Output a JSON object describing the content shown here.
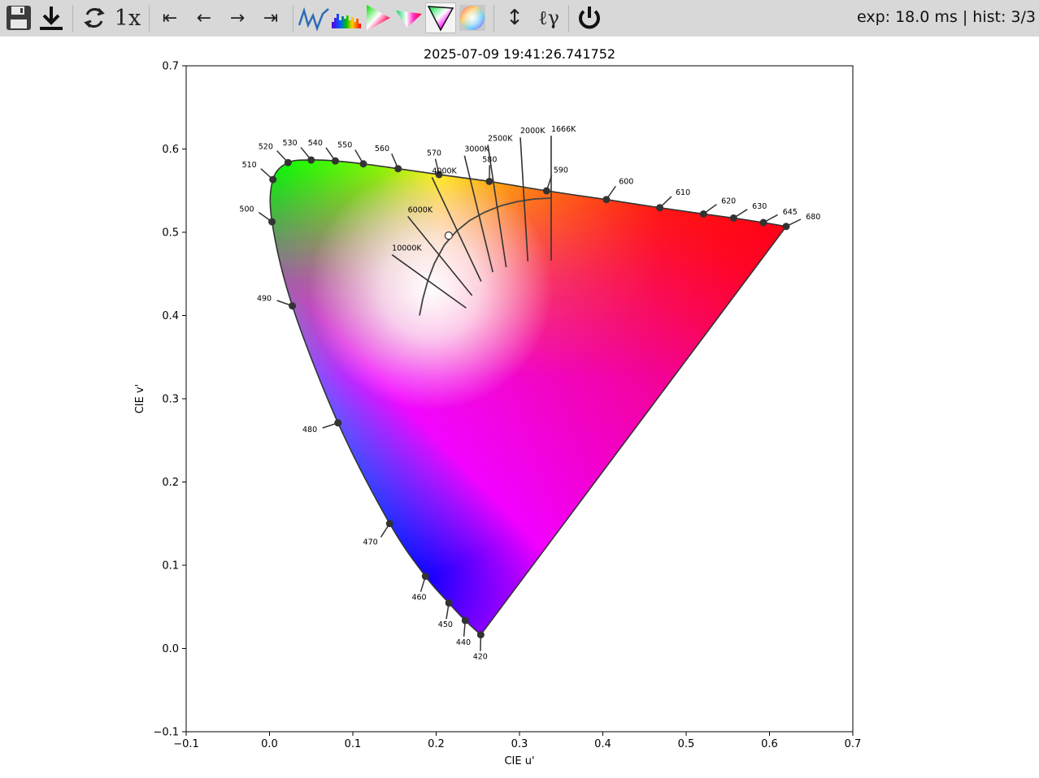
{
  "toolbar": {
    "buttons": [
      {
        "name": "save-icon",
        "icon": "floppy-disk"
      },
      {
        "name": "download-icon",
        "icon": "download-arrow"
      },
      {
        "name": "refresh-icon",
        "icon": "circular-arrows"
      },
      {
        "name": "speed-button",
        "label": "1x"
      },
      {
        "name": "first-button",
        "label": "⇤"
      },
      {
        "name": "prev-button",
        "label": "←"
      },
      {
        "name": "next-button",
        "label": "→"
      },
      {
        "name": "last-button",
        "label": "⇥"
      },
      {
        "name": "spectrum-line-icon",
        "icon": "spectrum-line"
      },
      {
        "name": "spectrum-histogram-icon",
        "icon": "spectrum-bars"
      },
      {
        "name": "cie-xy-icon",
        "icon": "chromaticity-triangle"
      },
      {
        "name": "cie-uv-icon",
        "icon": "chromaticity-triangle-flat"
      },
      {
        "name": "cie-uv-prime-icon",
        "icon": "chromaticity-triangle-inverted",
        "active": true
      },
      {
        "name": "color-wheel-icon",
        "icon": "color-disc"
      },
      {
        "name": "autoscale-button",
        "label": "↕"
      },
      {
        "name": "log-gamma-button",
        "label": "ℓγ"
      },
      {
        "name": "power-icon",
        "icon": "power"
      }
    ],
    "status": "exp: 18.0 ms | hist: 3/3"
  },
  "chart_data": {
    "type": "scatter",
    "title": "2025-07-09 19:41:26.741752",
    "xlabel": "CIE u'",
    "ylabel": "CIE v'",
    "xlim": [
      -0.1,
      0.7
    ],
    "ylim": [
      -0.1,
      0.7
    ],
    "xticks": [
      "−0.1",
      "0.0",
      "0.1",
      "0.2",
      "0.3",
      "0.4",
      "0.5",
      "0.6",
      "0.7"
    ],
    "yticks": [
      "−0.1",
      "0.0",
      "0.1",
      "0.2",
      "0.3",
      "0.4",
      "0.5",
      "0.6",
      "0.7"
    ],
    "grid": false,
    "spectral_locus": [
      {
        "nm": "420",
        "u": 0.2535,
        "v": 0.0165
      },
      {
        "nm": "440",
        "u": 0.2349,
        "v": 0.0336
      },
      {
        "nm": "450",
        "u": 0.2153,
        "v": 0.0546
      },
      {
        "nm": "460",
        "u": 0.1871,
        "v": 0.0868
      },
      {
        "nm": "470",
        "u": 0.1442,
        "v": 0.1501
      },
      {
        "nm": "480",
        "u": 0.0822,
        "v": 0.271
      },
      {
        "nm": "490",
        "u": 0.0274,
        "v": 0.4116
      },
      {
        "nm": "500",
        "u": 0.003,
        "v": 0.5126
      },
      {
        "nm": "510",
        "u": 0.0041,
        "v": 0.5633
      },
      {
        "nm": "520",
        "u": 0.0223,
        "v": 0.5837
      },
      {
        "nm": "530",
        "u": 0.05,
        "v": 0.5868
      },
      {
        "nm": "540",
        "u": 0.079,
        "v": 0.5857
      },
      {
        "nm": "550",
        "u": 0.1126,
        "v": 0.5822
      },
      {
        "nm": "560",
        "u": 0.1543,
        "v": 0.5764
      },
      {
        "nm": "570",
        "u": 0.2035,
        "v": 0.5693
      },
      {
        "nm": "580",
        "u": 0.2638,
        "v": 0.5611
      },
      {
        "nm": "590",
        "u": 0.3325,
        "v": 0.5498
      },
      {
        "nm": "600",
        "u": 0.4043,
        "v": 0.5393
      },
      {
        "nm": "610",
        "u": 0.4683,
        "v": 0.5295
      },
      {
        "nm": "620",
        "u": 0.5208,
        "v": 0.522
      },
      {
        "nm": "630",
        "u": 0.5569,
        "v": 0.5171
      },
      {
        "nm": "645",
        "u": 0.5927,
        "v": 0.5117
      },
      {
        "nm": "680",
        "u": 0.62,
        "v": 0.507
      }
    ],
    "planckian_locus": [
      {
        "u": 0.18,
        "v": 0.4
      },
      {
        "u": 0.184,
        "v": 0.42
      },
      {
        "u": 0.19,
        "v": 0.442
      },
      {
        "u": 0.198,
        "v": 0.463
      },
      {
        "u": 0.21,
        "v": 0.485
      },
      {
        "u": 0.224,
        "v": 0.501
      },
      {
        "u": 0.24,
        "v": 0.514
      },
      {
        "u": 0.258,
        "v": 0.524
      },
      {
        "u": 0.278,
        "v": 0.532
      },
      {
        "u": 0.298,
        "v": 0.537
      },
      {
        "u": 0.318,
        "v": 0.54
      },
      {
        "u": 0.337,
        "v": 0.541
      }
    ],
    "isotherms": [
      {
        "label": "10000K",
        "u1": 0.147,
        "v1": 0.473,
        "u2": 0.236,
        "v2": 0.409
      },
      {
        "label": "6000K",
        "u1": 0.166,
        "v1": 0.519,
        "u2": 0.243,
        "v2": 0.424
      },
      {
        "label": "4000K",
        "u1": 0.195,
        "v1": 0.566,
        "u2": 0.254,
        "v2": 0.441
      },
      {
        "label": "3000K",
        "u1": 0.234,
        "v1": 0.592,
        "u2": 0.268,
        "v2": 0.452
      },
      {
        "label": "2500K",
        "u1": 0.262,
        "v1": 0.605,
        "u2": 0.284,
        "v2": 0.458
      },
      {
        "label": "2000K",
        "u1": 0.301,
        "v1": 0.614,
        "u2": 0.31,
        "v2": 0.465
      },
      {
        "label": "1666K",
        "u1": 0.338,
        "v1": 0.616,
        "u2": 0.338,
        "v2": 0.466
      }
    ],
    "measurement": {
      "u": 0.215,
      "v": 0.496
    }
  }
}
